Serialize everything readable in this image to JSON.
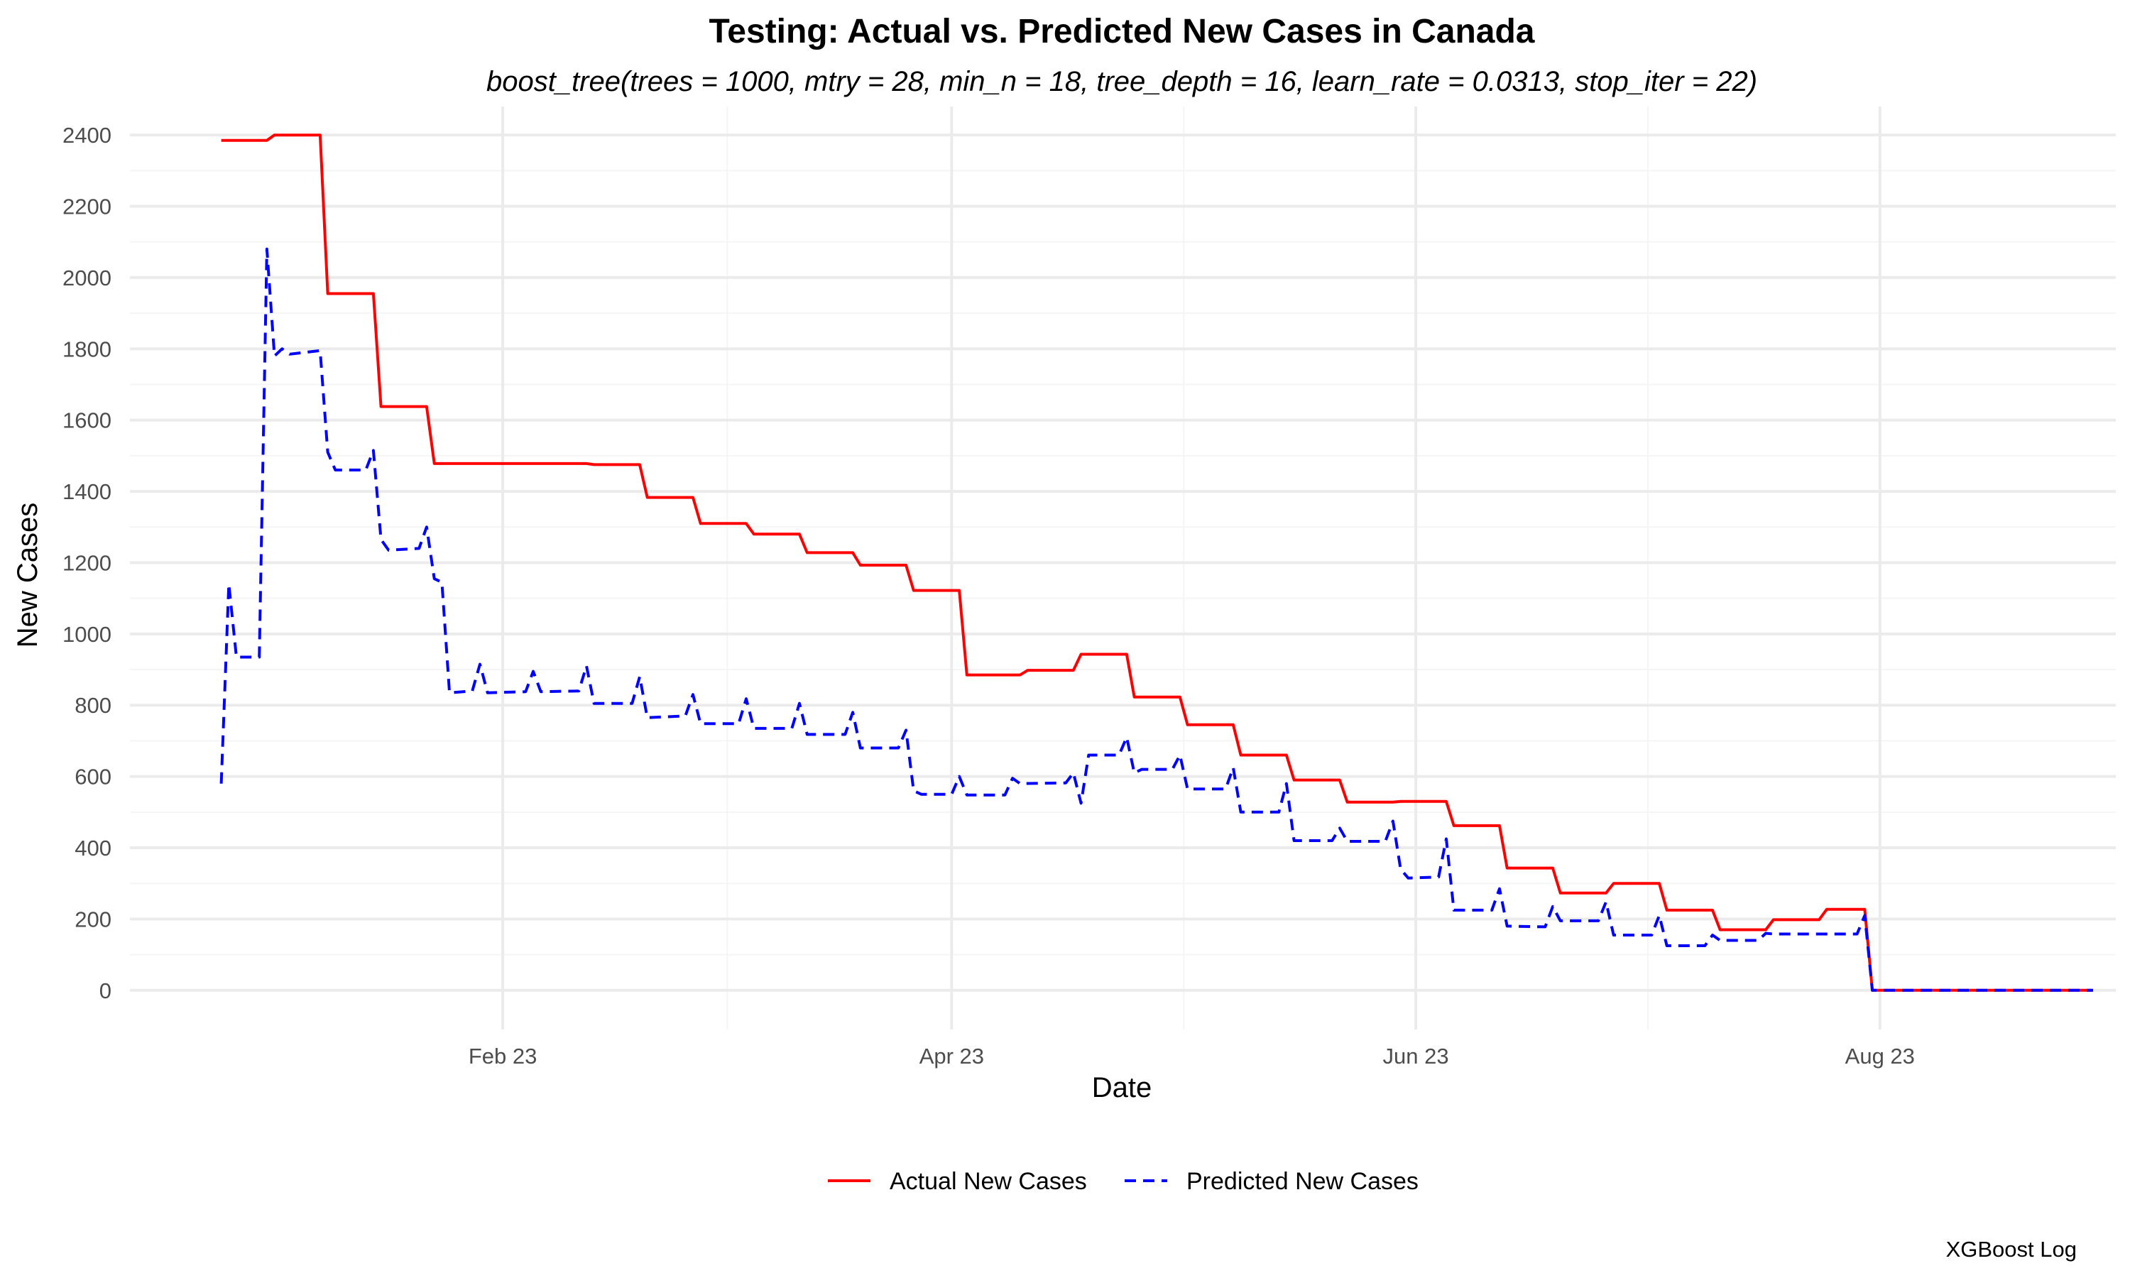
{
  "chart_data": {
    "type": "line",
    "title": "Testing: Actual vs. Predicted New Cases in Canada",
    "subtitle": "boost_tree(trees = 1000, mtry = 28, min_n = 18, tree_depth = 16, learn_rate = 0.0313, stop_iter = 22)",
    "xlabel": "Date",
    "ylabel": "New Cases",
    "caption": "XGBoost Log",
    "xlim": [
      "2023-01-05",
      "2023-09-23"
    ],
    "ylim": [
      -110,
      2480
    ],
    "y_ticks": [
      0,
      200,
      400,
      600,
      800,
      1000,
      1200,
      1400,
      1600,
      1800,
      2000,
      2200,
      2400
    ],
    "x_ticks": [
      {
        "date": "2023-02-23",
        "label": "Feb 23"
      },
      {
        "date": "2023-04-23",
        "label": "Apr 23"
      },
      {
        "date": "2023-06-23",
        "label": "Jun 23"
      },
      {
        "date": "2023-08-23",
        "label": "Aug 23"
      }
    ],
    "grid": true,
    "legend_position": "bottom",
    "series": [
      {
        "name": "Actual New Cases",
        "color": "#ff0000",
        "dash": "solid",
        "points": [
          [
            "2023-01-17",
            2385
          ],
          [
            "2023-01-23",
            2385
          ],
          [
            "2023-01-24",
            2400
          ],
          [
            "2023-01-30",
            2400
          ],
          [
            "2023-01-31",
            1955
          ],
          [
            "2023-02-06",
            1955
          ],
          [
            "2023-02-07",
            1638
          ],
          [
            "2023-02-13",
            1638
          ],
          [
            "2023-02-14",
            1478
          ],
          [
            "2023-03-06",
            1478
          ],
          [
            "2023-03-07",
            1475
          ],
          [
            "2023-03-13",
            1475
          ],
          [
            "2023-03-14",
            1383
          ],
          [
            "2023-03-20",
            1383
          ],
          [
            "2023-03-21",
            1310
          ],
          [
            "2023-03-27",
            1310
          ],
          [
            "2023-03-28",
            1280
          ],
          [
            "2023-04-03",
            1280
          ],
          [
            "2023-04-04",
            1228
          ],
          [
            "2023-04-10",
            1228
          ],
          [
            "2023-04-11",
            1193
          ],
          [
            "2023-04-17",
            1193
          ],
          [
            "2023-04-18",
            1122
          ],
          [
            "2023-04-24",
            1122
          ],
          [
            "2023-04-25",
            885
          ],
          [
            "2023-05-02",
            885
          ],
          [
            "2023-05-03",
            898
          ],
          [
            "2023-05-09",
            898
          ],
          [
            "2023-05-10",
            943
          ],
          [
            "2023-05-16",
            943
          ],
          [
            "2023-05-17",
            823
          ],
          [
            "2023-05-23",
            823
          ],
          [
            "2023-05-24",
            745
          ],
          [
            "2023-05-30",
            745
          ],
          [
            "2023-05-31",
            660
          ],
          [
            "2023-06-06",
            660
          ],
          [
            "2023-06-07",
            590
          ],
          [
            "2023-06-13",
            590
          ],
          [
            "2023-06-14",
            528
          ],
          [
            "2023-06-20",
            528
          ],
          [
            "2023-06-21",
            530
          ],
          [
            "2023-06-27",
            530
          ],
          [
            "2023-06-28",
            462
          ],
          [
            "2023-07-04",
            462
          ],
          [
            "2023-07-05",
            343
          ],
          [
            "2023-07-11",
            343
          ],
          [
            "2023-07-12",
            273
          ],
          [
            "2023-07-18",
            273
          ],
          [
            "2023-07-19",
            300
          ],
          [
            "2023-07-25",
            300
          ],
          [
            "2023-07-26",
            225
          ],
          [
            "2023-08-01",
            225
          ],
          [
            "2023-08-02",
            170
          ],
          [
            "2023-08-08",
            170
          ],
          [
            "2023-08-09",
            198
          ],
          [
            "2023-08-15",
            198
          ],
          [
            "2023-08-16",
            227
          ],
          [
            "2023-08-21",
            227
          ],
          [
            "2023-08-22",
            0
          ],
          [
            "2023-09-20",
            0
          ]
        ]
      },
      {
        "name": "Predicted New Cases",
        "color": "#0000ff",
        "dash": "dashed",
        "points": [
          [
            "2023-01-17",
            580
          ],
          [
            "2023-01-18",
            1140
          ],
          [
            "2023-01-19",
            935
          ],
          [
            "2023-01-22",
            935
          ],
          [
            "2023-01-23",
            2080
          ],
          [
            "2023-01-24",
            1780
          ],
          [
            "2023-01-25",
            1800
          ],
          [
            "2023-01-26",
            1785
          ],
          [
            "2023-01-30",
            1795
          ],
          [
            "2023-01-31",
            1510
          ],
          [
            "2023-02-01",
            1460
          ],
          [
            "2023-02-05",
            1460
          ],
          [
            "2023-02-06",
            1515
          ],
          [
            "2023-02-07",
            1265
          ],
          [
            "2023-02-08",
            1235
          ],
          [
            "2023-02-12",
            1240
          ],
          [
            "2023-02-13",
            1300
          ],
          [
            "2023-02-14",
            1155
          ],
          [
            "2023-02-15",
            1145
          ],
          [
            "2023-02-16",
            835
          ],
          [
            "2023-02-19",
            840
          ],
          [
            "2023-02-20",
            915
          ],
          [
            "2023-02-21",
            835
          ],
          [
            "2023-02-26",
            838
          ],
          [
            "2023-02-27",
            895
          ],
          [
            "2023-02-28",
            838
          ],
          [
            "2023-03-05",
            840
          ],
          [
            "2023-03-06",
            910
          ],
          [
            "2023-03-07",
            805
          ],
          [
            "2023-03-12",
            805
          ],
          [
            "2023-03-13",
            880
          ],
          [
            "2023-03-14",
            765
          ],
          [
            "2023-03-19",
            770
          ],
          [
            "2023-03-20",
            830
          ],
          [
            "2023-03-21",
            748
          ],
          [
            "2023-03-26",
            748
          ],
          [
            "2023-03-27",
            818
          ],
          [
            "2023-03-28",
            735
          ],
          [
            "2023-04-02",
            735
          ],
          [
            "2023-04-03",
            805
          ],
          [
            "2023-04-04",
            718
          ],
          [
            "2023-04-09",
            718
          ],
          [
            "2023-04-10",
            780
          ],
          [
            "2023-04-11",
            680
          ],
          [
            "2023-04-16",
            680
          ],
          [
            "2023-04-17",
            730
          ],
          [
            "2023-04-18",
            560
          ],
          [
            "2023-04-19",
            550
          ],
          [
            "2023-04-23",
            550
          ],
          [
            "2023-04-24",
            600
          ],
          [
            "2023-04-25",
            548
          ],
          [
            "2023-04-30",
            548
          ],
          [
            "2023-05-01",
            595
          ],
          [
            "2023-05-02",
            580
          ],
          [
            "2023-05-08",
            582
          ],
          [
            "2023-05-09",
            610
          ],
          [
            "2023-05-10",
            525
          ],
          [
            "2023-05-11",
            660
          ],
          [
            "2023-05-15",
            660
          ],
          [
            "2023-05-16",
            710
          ],
          [
            "2023-05-17",
            610
          ],
          [
            "2023-05-18",
            620
          ],
          [
            "2023-05-22",
            620
          ],
          [
            "2023-05-23",
            660
          ],
          [
            "2023-05-24",
            565
          ],
          [
            "2023-05-29",
            565
          ],
          [
            "2023-05-30",
            625
          ],
          [
            "2023-05-31",
            500
          ],
          [
            "2023-06-05",
            500
          ],
          [
            "2023-06-06",
            580
          ],
          [
            "2023-06-07",
            420
          ],
          [
            "2023-06-12",
            420
          ],
          [
            "2023-06-13",
            455
          ],
          [
            "2023-06-14",
            418
          ],
          [
            "2023-06-19",
            418
          ],
          [
            "2023-06-20",
            475
          ],
          [
            "2023-06-21",
            340
          ],
          [
            "2023-06-22",
            315
          ],
          [
            "2023-06-26",
            318
          ],
          [
            "2023-06-27",
            425
          ],
          [
            "2023-06-28",
            225
          ],
          [
            "2023-07-03",
            225
          ],
          [
            "2023-07-04",
            285
          ],
          [
            "2023-07-05",
            180
          ],
          [
            "2023-07-10",
            178
          ],
          [
            "2023-07-11",
            235
          ],
          [
            "2023-07-12",
            195
          ],
          [
            "2023-07-17",
            195
          ],
          [
            "2023-07-18",
            248
          ],
          [
            "2023-07-19",
            155
          ],
          [
            "2023-07-24",
            155
          ],
          [
            "2023-07-25",
            210
          ],
          [
            "2023-07-26",
            125
          ],
          [
            "2023-07-31",
            125
          ],
          [
            "2023-08-01",
            155
          ],
          [
            "2023-08-02",
            140
          ],
          [
            "2023-08-07",
            140
          ],
          [
            "2023-08-08",
            160
          ],
          [
            "2023-08-09",
            158
          ],
          [
            "2023-08-14",
            158
          ],
          [
            "2023-08-20",
            158
          ],
          [
            "2023-08-21",
            210
          ],
          [
            "2023-08-22",
            0
          ],
          [
            "2023-09-20",
            0
          ]
        ]
      }
    ]
  }
}
